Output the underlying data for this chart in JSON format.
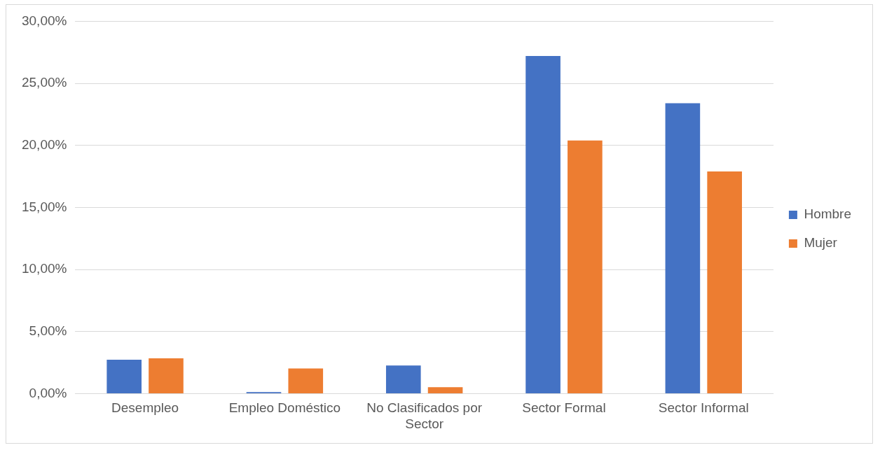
{
  "chart_data": {
    "type": "bar",
    "categories": [
      "Desempleo",
      "Empleo Doméstico",
      "No Clasificados por Sector",
      "Sector Formal",
      "Sector Informal"
    ],
    "series": [
      {
        "name": "Hombre",
        "color": "#4472c4",
        "values": [
          2.73,
          0.12,
          2.26,
          27.2,
          23.4
        ]
      },
      {
        "name": "Mujer",
        "color": "#ed7d31",
        "values": [
          2.84,
          2.03,
          0.52,
          20.4,
          17.9
        ]
      }
    ],
    "ylim": [
      0,
      30
    ],
    "yticks": [
      {
        "value": 0,
        "label": "0,00%"
      },
      {
        "value": 5,
        "label": "5,00%"
      },
      {
        "value": 10,
        "label": "10,00%"
      },
      {
        "value": 15,
        "label": "15,00%"
      },
      {
        "value": 20,
        "label": "20,00%"
      },
      {
        "value": 25,
        "label": "25,00%"
      },
      {
        "value": 30,
        "label": "30,00%"
      }
    ],
    "grid": "y",
    "legend": "right"
  }
}
